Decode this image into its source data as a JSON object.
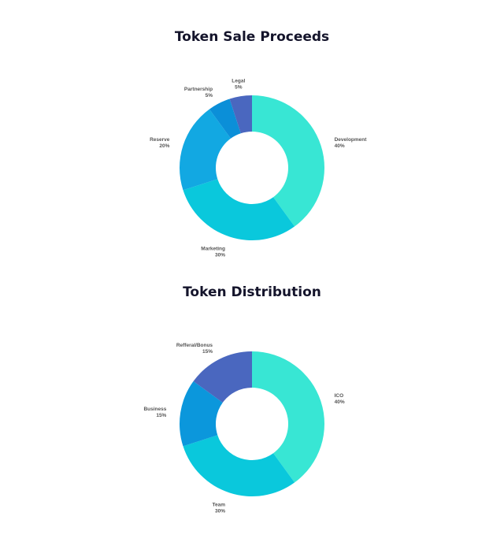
{
  "chart_data": [
    {
      "type": "pie",
      "title": "Token Sale Proceeds",
      "donut": true,
      "slices": [
        {
          "label": "Development",
          "value": 40,
          "value_label": "40%",
          "color": "#38e6d4"
        },
        {
          "label": "Marketing",
          "value": 30,
          "value_label": "30%",
          "color": "#0ac8dc"
        },
        {
          "label": "Reserve",
          "value": 20,
          "value_label": "20%",
          "color": "#12a8e2"
        },
        {
          "label": "Partnership",
          "value": 5,
          "value_label": "5%",
          "color": "#0b8fd8"
        },
        {
          "label": "Legal",
          "value": 5,
          "value_label": "5%",
          "color": "#4a67bf"
        }
      ]
    },
    {
      "type": "pie",
      "title": "Token Distribution",
      "donut": true,
      "slices": [
        {
          "label": "ICO",
          "value": 40,
          "value_label": "40%",
          "color": "#38e6d4"
        },
        {
          "label": "Team",
          "value": 30,
          "value_label": "30%",
          "color": "#0ac8dc"
        },
        {
          "label": "Business",
          "value": 15,
          "value_label": "15%",
          "color": "#0b97dc"
        },
        {
          "label": "Refferal/Bonus",
          "value": 15,
          "value_label": "15%",
          "color": "#4a67bf"
        }
      ]
    }
  ]
}
